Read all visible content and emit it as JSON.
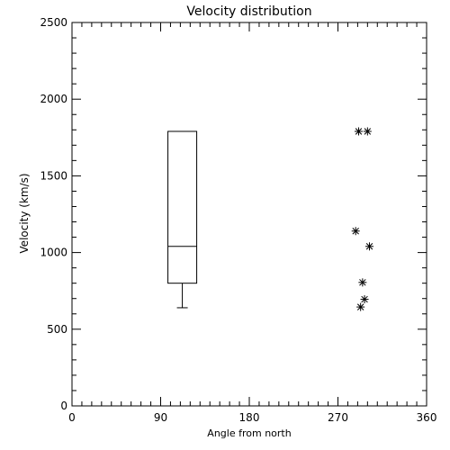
{
  "chart_data": {
    "type": "box",
    "title": "Velocity distribution",
    "xlabel": "Angle from north",
    "ylabel": "Velocity (km/s)",
    "xlim": [
      0,
      360
    ],
    "ylim": [
      0,
      2500
    ],
    "xticks": [
      0,
      90,
      180,
      270,
      360
    ],
    "yticks": [
      0,
      500,
      1000,
      1500,
      2000,
      2500
    ],
    "grid": false,
    "box": {
      "x": 112,
      "whisker_low": 640,
      "q1": 800,
      "median": 1040,
      "q3": 1790
    },
    "scatter": {
      "marker": "asterisk",
      "points": [
        {
          "x": 291,
          "y": 1790
        },
        {
          "x": 300,
          "y": 1790
        },
        {
          "x": 288,
          "y": 1140
        },
        {
          "x": 302,
          "y": 1040
        },
        {
          "x": 295,
          "y": 805
        },
        {
          "x": 297,
          "y": 695
        },
        {
          "x": 293,
          "y": 645
        }
      ]
    }
  }
}
